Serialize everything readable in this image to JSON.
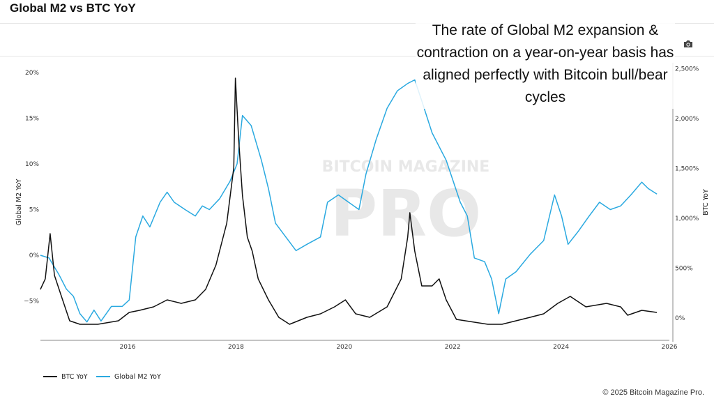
{
  "header": {
    "title": "Global M2 vs BTC YoY",
    "camera_icon": "camera-icon"
  },
  "annotation": "The rate of Global M2 expansion & contraction on a year-on-year basis has aligned perfectly with Bitcoin bull/bear cycles",
  "watermark": {
    "line1": "BITCOIN MAGAZINE",
    "line2": "PRO"
  },
  "footer": "© 2025 Bitcoin Magazine Pro.",
  "chart_data": {
    "type": "line",
    "title": "Global M2 vs BTC YoY",
    "xlabel": "",
    "ylabel_left": "Global M2 YoY",
    "ylabel_right": "BTC YoY",
    "xlim": [
      2014.39,
      2026
    ],
    "ylim_left": [
      -9.3,
      21
    ],
    "ylim_right": [
      -230,
      2570
    ],
    "x_ticks": [
      "2016",
      "2018",
      "2020",
      "2022",
      "2024",
      "2026"
    ],
    "x_tick_values": [
      2016,
      2018,
      2020,
      2022,
      2024,
      2026
    ],
    "y_left_ticks": [
      "20%",
      "15%",
      "10%",
      "5%",
      "0%",
      "−5%"
    ],
    "y_left_tick_values": [
      20,
      15,
      10,
      5,
      0,
      -5
    ],
    "y_right_ticks": [
      "2,500%",
      "2,000%",
      "1,500%",
      "1,000%",
      "500%",
      "0%"
    ],
    "y_right_tick_values": [
      2500,
      2000,
      1500,
      1000,
      500,
      0
    ],
    "grid": false,
    "legend_position": "bottom-left",
    "series": [
      {
        "name": "BTC YoY",
        "axis": "right",
        "color": "#111111",
        "x": [
          2014.39,
          2014.48,
          2014.57,
          2014.65,
          2014.8,
          2014.93,
          2015.12,
          2015.45,
          2015.83,
          2016.03,
          2016.22,
          2016.48,
          2016.73,
          2016.99,
          2017.25,
          2017.44,
          2017.63,
          2017.83,
          2017.96,
          2017.99,
          2018.05,
          2018.12,
          2018.21,
          2018.3,
          2018.41,
          2018.6,
          2018.79,
          2018.99,
          2019.31,
          2019.56,
          2019.82,
          2020.02,
          2020.21,
          2020.47,
          2020.79,
          2021.05,
          2021.17,
          2021.21,
          2021.3,
          2021.43,
          2021.62,
          2021.75,
          2021.88,
          2022.07,
          2022.4,
          2022.65,
          2022.91,
          2023.43,
          2023.68,
          2023.94,
          2024.17,
          2024.46,
          2024.84,
          2025.1,
          2025.23,
          2025.49,
          2025.77
        ],
        "y": [
          287,
          392,
          846,
          427,
          182,
          -28,
          -63,
          -63,
          -28,
          56,
          77,
          112,
          182,
          147,
          182,
          287,
          531,
          951,
          1510,
          2405,
          1790,
          1231,
          811,
          671,
          392,
          182,
          7,
          -63,
          7,
          42,
          112,
          182,
          42,
          7,
          112,
          392,
          811,
          1056,
          671,
          322,
          322,
          392,
          182,
          -14,
          -42,
          -63,
          -63,
          7,
          42,
          147,
          217,
          112,
          147,
          112,
          28,
          77,
          56
        ]
      },
      {
        "name": "Global M2 YoY",
        "axis": "left",
        "color": "#2aa9e0",
        "x": [
          2014.39,
          2014.55,
          2014.74,
          2014.87,
          2015.0,
          2015.12,
          2015.25,
          2015.38,
          2015.51,
          2015.7,
          2015.9,
          2016.03,
          2016.15,
          2016.28,
          2016.41,
          2016.6,
          2016.73,
          2016.86,
          2017.06,
          2017.25,
          2017.38,
          2017.51,
          2017.7,
          2017.89,
          2018.02,
          2018.12,
          2018.28,
          2018.47,
          2018.6,
          2018.73,
          2018.92,
          2019.11,
          2019.31,
          2019.56,
          2019.69,
          2019.89,
          2020.08,
          2020.27,
          2020.4,
          2020.59,
          2020.79,
          2020.98,
          2021.17,
          2021.3,
          2021.43,
          2021.62,
          2021.88,
          2022.01,
          2022.14,
          2022.27,
          2022.4,
          2022.59,
          2022.72,
          2022.85,
          2022.98,
          2023.17,
          2023.43,
          2023.68,
          2023.88,
          2024.01,
          2024.13,
          2024.33,
          2024.52,
          2024.71,
          2024.91,
          2025.1,
          2025.29,
          2025.49,
          2025.61,
          2025.77
        ],
        "y": [
          0,
          -0.3,
          -2.2,
          -3.7,
          -4.5,
          -6.4,
          -7.3,
          -6.0,
          -7.2,
          -5.6,
          -5.6,
          -4.9,
          2.0,
          4.3,
          3.1,
          5.8,
          6.9,
          5.8,
          5.0,
          4.3,
          5.4,
          5.0,
          6.2,
          8.1,
          10.0,
          15.3,
          14.2,
          10.4,
          7.3,
          3.5,
          2.0,
          0.5,
          1.2,
          2.0,
          5.8,
          6.6,
          5.8,
          5.0,
          8.9,
          12.7,
          16.1,
          18.0,
          18.8,
          19.2,
          16.9,
          13.4,
          10.4,
          8.1,
          5.8,
          4.3,
          -0.3,
          -0.7,
          -2.6,
          -6.4,
          -2.6,
          -1.8,
          0.1,
          1.6,
          6.6,
          4.3,
          1.2,
          2.7,
          4.3,
          5.8,
          5.0,
          5.4,
          6.6,
          8.0,
          7.3,
          6.7
        ]
      }
    ]
  }
}
